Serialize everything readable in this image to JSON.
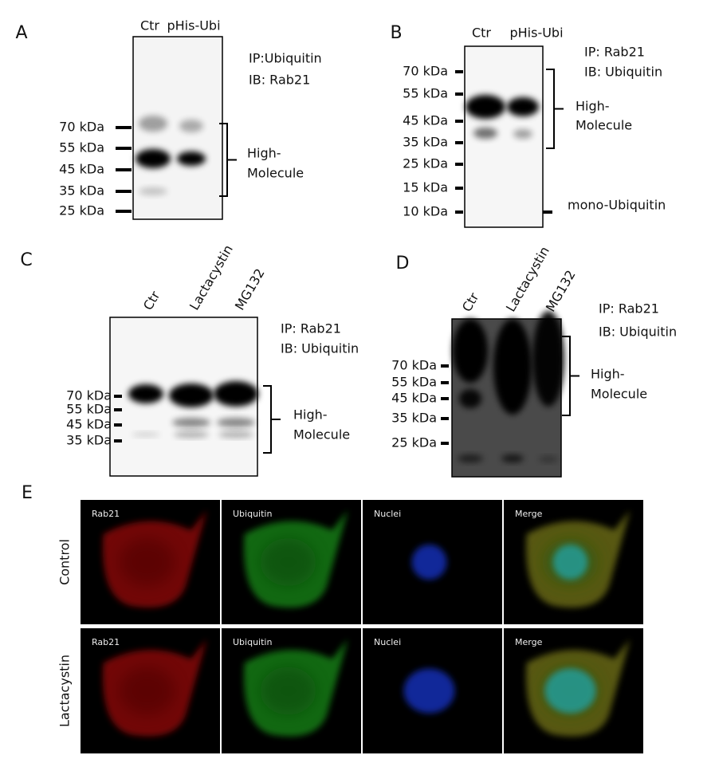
{
  "figure": {
    "panels": [
      {
        "letter": "A",
        "lanes": [
          "Ctr",
          "pHis-Ubi"
        ],
        "ip": "IP:Ubiquitin",
        "ib": "IB: Rab21",
        "markers": [
          "70 kDa",
          "55 kDa",
          "45 kDa",
          "35 kDa",
          "25 kDa"
        ],
        "bracket": [
          "High-",
          "Molecule"
        ]
      },
      {
        "letter": "B",
        "lanes": [
          "Ctr",
          "pHis-Ubi"
        ],
        "ip": "IP: Rab21",
        "ib": "IB: Ubiquitin",
        "markers": [
          "70 kDa",
          "55 kDa",
          "45 kDa",
          "35 kDa",
          "25 kDa",
          "15 kDa",
          "10 kDa"
        ],
        "bracket": [
          "High-",
          "Molecule"
        ],
        "extra": "mono-Ubiquitin"
      },
      {
        "letter": "C",
        "lanes": [
          "Ctr",
          "Lactacystin",
          "MG132"
        ],
        "ip": "IP: Rab21",
        "ib": "IB: Ubiquitin",
        "markers": [
          "70 kDa",
          "55 kDa",
          "45 kDa",
          "35 kDa"
        ],
        "bracket": [
          "High-",
          "Molecule"
        ]
      },
      {
        "letter": "D",
        "lanes": [
          "Ctr",
          "Lactacystin",
          "MG132"
        ],
        "ip": "IP: Rab21",
        "ib": "IB: Ubiquitin",
        "markers": [
          "70 kDa",
          "55 kDa",
          "45 kDa",
          "35 kDa",
          "25 kDa"
        ],
        "bracket": [
          "High-",
          "Molecule"
        ]
      }
    ],
    "imaging": {
      "letter": "E",
      "rows": [
        "Control",
        "Lactacystin"
      ],
      "channels": [
        "Rab21",
        "Ubiquitin",
        "Nuclei",
        "Merge"
      ]
    }
  }
}
